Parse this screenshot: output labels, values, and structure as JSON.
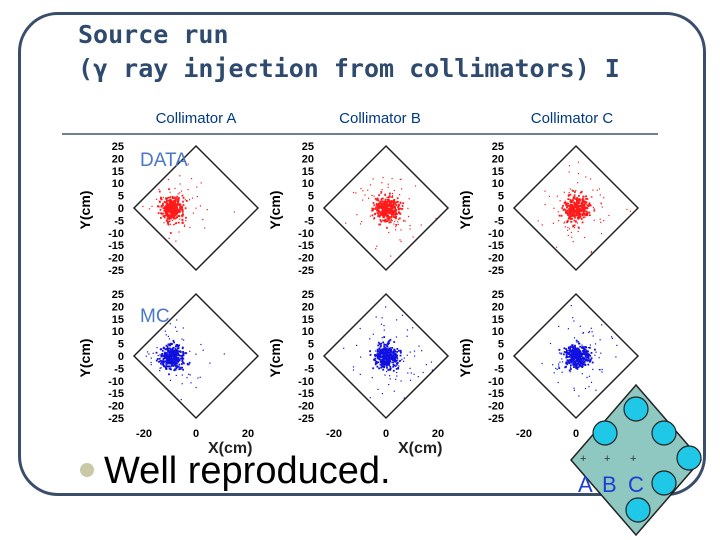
{
  "slide": {
    "title_line1": "Source run",
    "title_line2": "(γ ray injection from collimators) I",
    "bullet": "Well reproduced."
  },
  "columns": [
    {
      "label": "Collimator A"
    },
    {
      "label": "Collimator B"
    },
    {
      "label": "Collimator C"
    }
  ],
  "rows": [
    {
      "label": "DATA",
      "color": "#ff1a1a"
    },
    {
      "label": "MC",
      "color": "#1010e0"
    }
  ],
  "axes": {
    "ylabel": "Y(cm)",
    "xlabel": "X(cm)",
    "yticks": [
      "25",
      "20",
      "15",
      "10",
      "5",
      "0",
      "-5",
      "-10",
      "-15",
      "-20",
      "-25"
    ],
    "xticks": [
      "-20",
      "0",
      "20"
    ]
  },
  "legend": {
    "letters": [
      "A",
      "B",
      "C"
    ],
    "plus": "+",
    "tile_color": "#8ec8c0",
    "circle_color": "#1ec8e6"
  }
}
